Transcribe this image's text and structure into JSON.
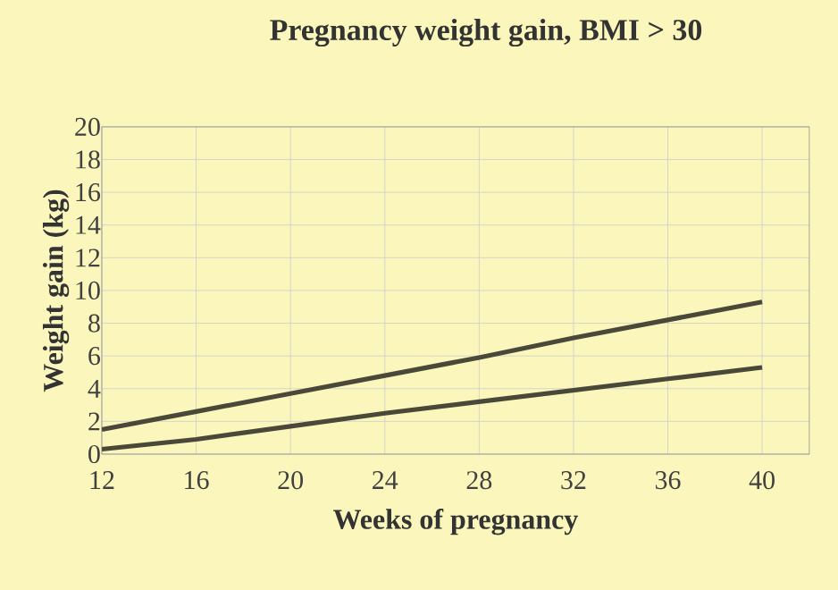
{
  "chart_data": {
    "type": "line",
    "title": "Pregnancy weight gain, BMI > 30",
    "xlabel": "Weeks of pregnancy",
    "ylabel": "Weight gain (kg)",
    "x": [
      12,
      16,
      20,
      24,
      28,
      32,
      36,
      40
    ],
    "series": [
      {
        "color": "#4a4838",
        "values": [
          1.5,
          2.6,
          3.7,
          4.8,
          5.9,
          7.1,
          8.2,
          9.3
        ]
      },
      {
        "color": "#4a4838",
        "values": [
          0.3,
          0.9,
          1.7,
          2.5,
          3.2,
          3.9,
          4.6,
          5.3
        ]
      }
    ],
    "xlim": [
      12,
      42
    ],
    "xticks": [
      12,
      16,
      20,
      24,
      28,
      32,
      36,
      40
    ],
    "ylim": [
      0,
      20
    ],
    "yticks": [
      0,
      2,
      4,
      6,
      8,
      10,
      12,
      14,
      16,
      18,
      20
    ],
    "grid": true,
    "marker": "none",
    "line_style": "solid"
  }
}
